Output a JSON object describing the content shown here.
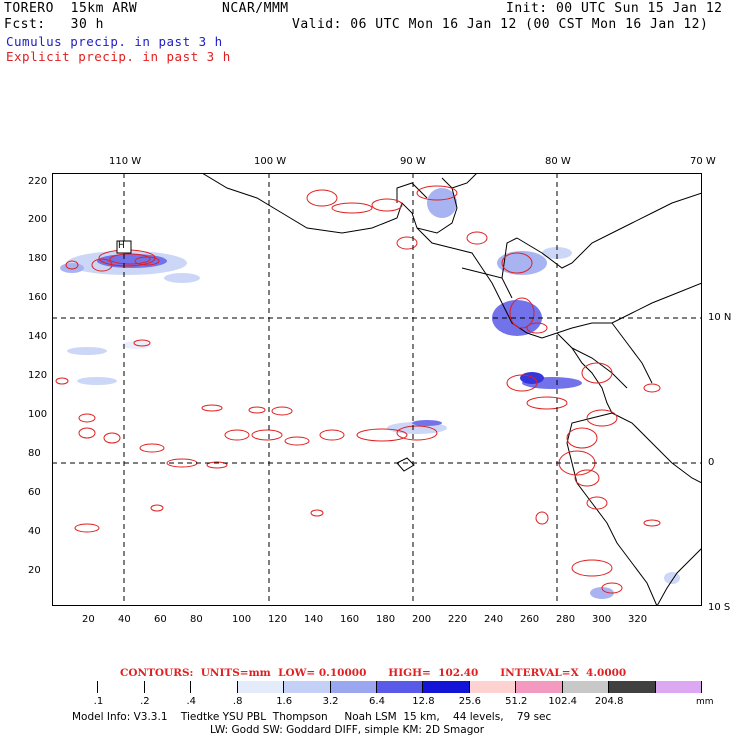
{
  "header": {
    "model": "TORERO  15km ARW",
    "org": "NCAR/MMM",
    "init": "Init: 00 UTC Sun 15 Jan 12",
    "fcst": "Fcst:   30 h",
    "valid": "Valid: 06 UTC Mon 16 Jan 12 (00 CST Mon 16 Jan 12)",
    "cumulus": "Cumulus precip. in past 3 h",
    "explicit": "Explicit precip. in past 3 h"
  },
  "colors": {
    "cumulus": "#2020c8",
    "explicit": "#e02020",
    "coast": "#000000"
  },
  "map": {
    "lon_labels": [
      "110 W",
      "100 W",
      "90 W",
      "80 W",
      "70 W"
    ],
    "lat_labels": [
      "10 N",
      "0",
      "10 S"
    ],
    "y_ticks": [
      "220",
      "200",
      "180",
      "160",
      "140",
      "120",
      "100",
      "80",
      "60",
      "40",
      "20"
    ],
    "x_ticks": [
      "20",
      "40",
      "60",
      "80",
      "100",
      "120",
      "140",
      "160",
      "180",
      "200",
      "220",
      "240",
      "260",
      "280",
      "300",
      "320"
    ],
    "marker": "H"
  },
  "contours": {
    "line": "CONTOURS:  UNITS=mm  LOW= 0.10000      HIGH=  102.40      INTERVAL=X  4.0000"
  },
  "colorbar": {
    "labels": [
      ".1",
      ".2",
      ".4",
      ".8",
      "1.6",
      "3.2",
      "6.4",
      "12.8",
      "25.6",
      "51.2",
      "102.4",
      "204.8"
    ],
    "unit": "mm",
    "colors": [
      "#ffffff",
      "#ffffff",
      "#ffffff",
      "#ffffff",
      "#e4ecfb",
      "#c4d0f6",
      "#9aa6f0",
      "#5a5ae8",
      "#1414d8",
      "#ffd2d2",
      "#f49ac0",
      "#c8c8c8",
      "#404040",
      "#dca8f4"
    ]
  },
  "footer": {
    "line1": "Model Info: V3.3.1    Tiedtke YSU PBL  Thompson     Noah LSM  15 km,    44 levels,    79 sec",
    "line2": "LW: Godd SW: Goddard DIFF, simple KM: 2D Smagor"
  }
}
